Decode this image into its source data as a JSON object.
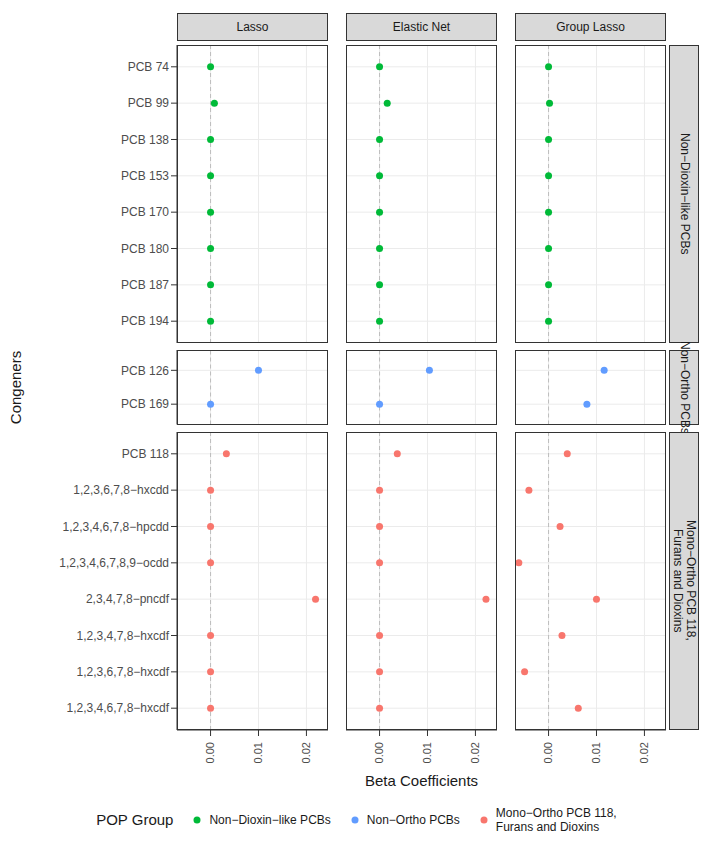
{
  "chart_data": {
    "type": "scatter",
    "x_label": "Beta Coefficients",
    "y_label": "Congeners",
    "legend_title": "POP Group",
    "legend": "bottom",
    "grid": true,
    "xlim": [
      -0.007,
      0.0245
    ],
    "xticks": [
      {
        "value": 0,
        "label": "0.00"
      },
      {
        "value": 0.01,
        "label": "0.01"
      },
      {
        "value": 0.02,
        "label": "0.02"
      }
    ],
    "panels": [
      "Lasso",
      "Elastic Net",
      "Group Lasso"
    ],
    "series": [
      {
        "name": "Non−Dioxin−like PCBs",
        "color": "#00BA38",
        "categories": [
          "PCB 74",
          "PCB 99",
          "PCB 138",
          "PCB 153",
          "PCB 170",
          "PCB 180",
          "PCB 187",
          "PCB 194"
        ],
        "values": [
          [
            0,
            0.0008,
            0,
            0,
            0,
            0,
            0,
            0
          ],
          [
            0,
            0.0016,
            0,
            0,
            0,
            0,
            0,
            0
          ],
          [
            0,
            0.0002,
            0,
            0,
            0,
            0,
            0,
            0
          ]
        ]
      },
      {
        "name": "Non−Ortho PCBs",
        "color": "#619CFF",
        "categories": [
          "PCB 126",
          "PCB 169"
        ],
        "values": [
          [
            0.01,
            0
          ],
          [
            0.0104,
            0
          ],
          [
            0.0116,
            0.008
          ]
        ]
      },
      {
        "name": "Mono−Ortho PCB 118, Furans and Dioxins",
        "color": "#F8766D",
        "categories": [
          "PCB 118",
          "1,2,3,6,7,8−hxcdd",
          "1,2,3,4,6,7,8−hpcdd",
          "1,2,3,4,6,7,8,9−ocdd",
          "2,3,4,7,8−pncdf",
          "1,2,3,4,7,8−hxcdf",
          "1,2,3,6,7,8−hxcdf",
          "1,2,3,4,6,7,8−hxcdf"
        ],
        "values": [
          [
            0.0033,
            0,
            0,
            0,
            0.0219,
            0,
            0,
            0
          ],
          [
            0.0037,
            0,
            0,
            0,
            0.0222,
            0,
            0,
            0
          ],
          [
            0.0039,
            -0.0041,
            0.0024,
            -0.0062,
            0.01,
            0.0028,
            -0.005,
            0.0062
          ]
        ]
      }
    ]
  }
}
